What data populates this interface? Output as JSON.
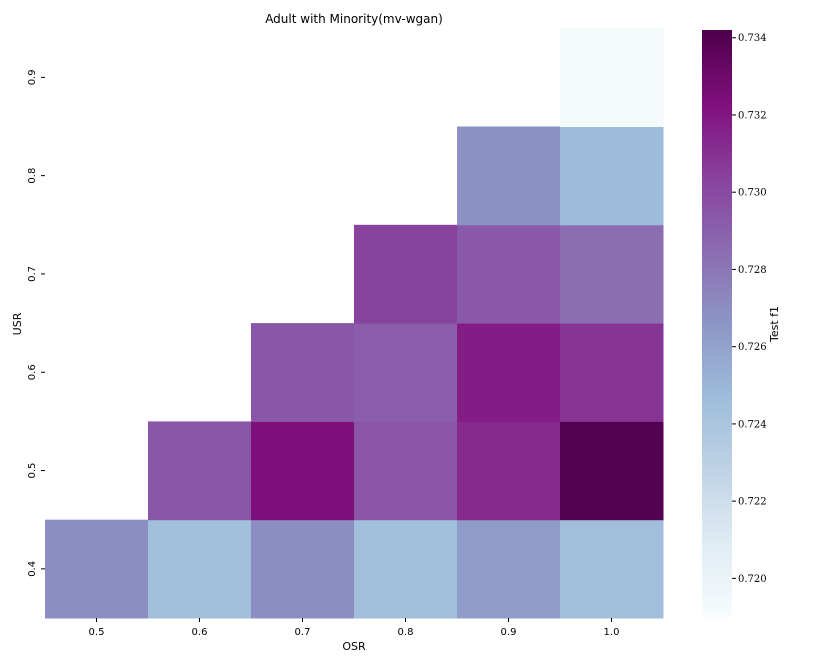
{
  "chart_data": {
    "type": "heatmap",
    "title": "Adult with Minority(mv-wgan)",
    "xlabel": "OSR",
    "ylabel": "USR",
    "x_categories": [
      "0.5",
      "0.6",
      "0.7",
      "0.8",
      "0.9",
      "1.0"
    ],
    "y_categories": [
      "0.4",
      "0.5",
      "0.6",
      "0.7",
      "0.8",
      "0.9"
    ],
    "values": [
      [
        0.727,
        0.7245,
        0.727,
        0.7245,
        0.7263,
        0.7245
      ],
      [
        null,
        0.7294,
        0.7324,
        0.7295,
        0.7313,
        0.734
      ],
      [
        null,
        null,
        0.7294,
        0.7291,
        0.7318,
        0.7309
      ],
      [
        null,
        null,
        null,
        0.7303,
        0.7293,
        0.7284
      ],
      [
        null,
        null,
        null,
        null,
        0.7268,
        0.7247
      ],
      [
        null,
        null,
        null,
        null,
        null,
        0.7192
      ]
    ],
    "colorbar": {
      "label": "Test f1",
      "min": 0.719,
      "max": 0.7342,
      "ticks": [
        "0.720",
        "0.722",
        "0.724",
        "0.726",
        "0.728",
        "0.730",
        "0.732",
        "0.734"
      ]
    },
    "colormap": [
      "#f7fcfd",
      "#e0ecf4",
      "#bfd3e6",
      "#9ebcda",
      "#8c96c6",
      "#8c6bb1",
      "#88419d",
      "#810f7c",
      "#4d004b"
    ],
    "grid": false
  }
}
